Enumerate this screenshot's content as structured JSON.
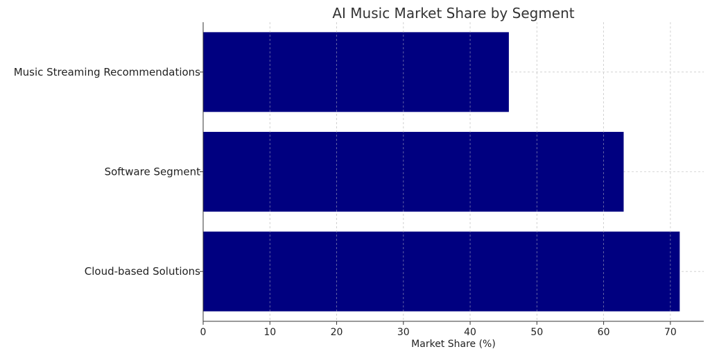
{
  "chart_data": {
    "type": "bar",
    "orientation": "horizontal",
    "title": "AI Music Market Share by Segment",
    "xlabel": "Market Share (%)",
    "ylabel": "",
    "categories": [
      "Cloud-based Solutions",
      "Software Segment",
      "Music Streaming Recommendations"
    ],
    "values": [
      71.4,
      63.0,
      45.8
    ],
    "xlim": [
      0,
      75
    ],
    "xticks": [
      0,
      10,
      20,
      30,
      40,
      50,
      60,
      70
    ],
    "grid": true,
    "bar_color": "#000080"
  }
}
